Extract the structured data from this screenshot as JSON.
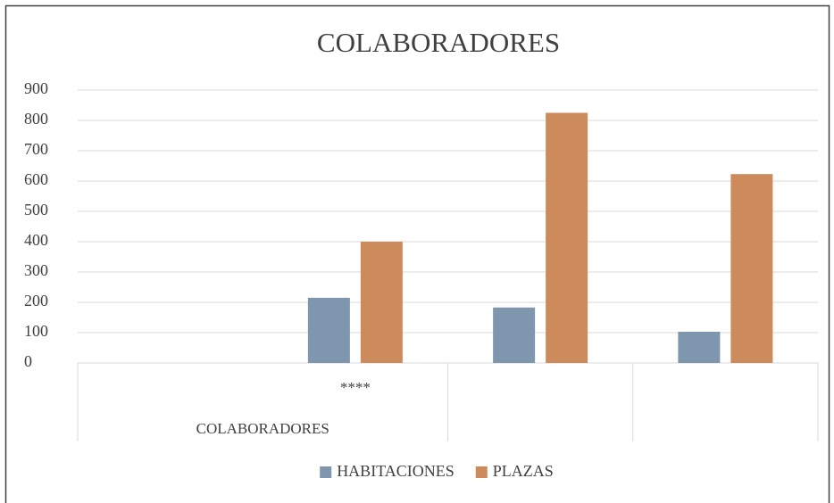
{
  "chart_data": {
    "type": "bar",
    "title": "COLABORADORES",
    "categories": [
      null,
      "****",
      null,
      null
    ],
    "category_groups": [
      {
        "label": "COLABORADORES",
        "size": 2
      },
      {
        "label": null,
        "size": 1
      },
      {
        "label": null,
        "size": 1
      }
    ],
    "series": [
      {
        "name": "HABITACIONES",
        "color": "#7f97ae",
        "values": [
          null,
          215,
          183,
          103
        ]
      },
      {
        "name": "PLAZAS",
        "color": "#cd8b5c",
        "values": [
          null,
          400,
          825,
          623
        ]
      }
    ],
    "ylim": [
      0,
      900
    ],
    "yticks": [
      0,
      100,
      200,
      300,
      400,
      500,
      600,
      700,
      800,
      900
    ],
    "grid": true,
    "legend": "bottom"
  }
}
